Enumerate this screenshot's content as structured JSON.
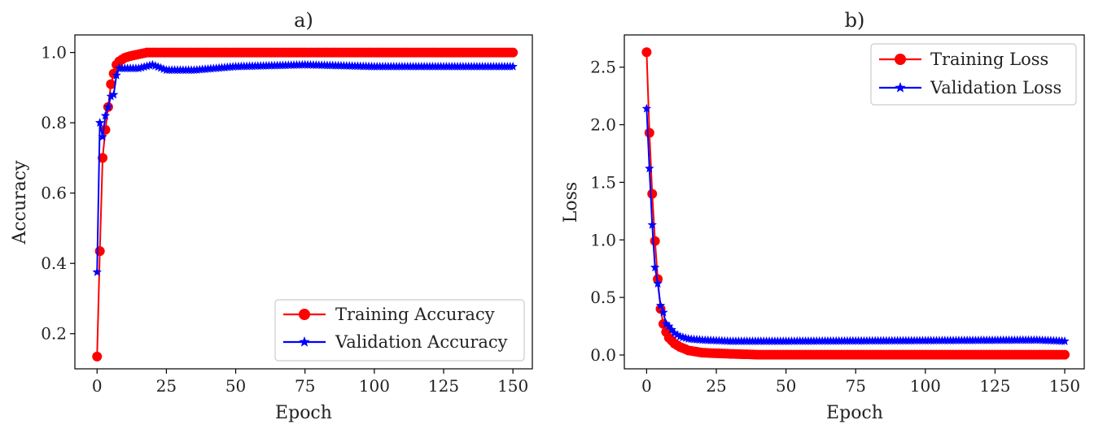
{
  "chart_data": [
    {
      "type": "line",
      "title": "a)",
      "xlabel": "Epoch",
      "ylabel": "Accuracy",
      "xlim": [
        -8,
        157
      ],
      "ylim": [
        0.1,
        1.05
      ],
      "xticks": [
        0,
        25,
        50,
        75,
        100,
        125,
        150
      ],
      "yticks": [
        0.2,
        0.4,
        0.6,
        0.8,
        1.0
      ],
      "legend_position": "lower-right",
      "grid": false,
      "series": [
        {
          "name": "Training Accuracy",
          "color": "#ff0000",
          "marker": "circle",
          "anchors": [
            [
              0,
              0.135
            ],
            [
              1,
              0.435
            ],
            [
              2,
              0.7
            ],
            [
              3,
              0.78
            ],
            [
              4,
              0.845
            ],
            [
              5,
              0.91
            ],
            [
              6,
              0.94
            ],
            [
              7,
              0.965
            ],
            [
              8,
              0.975
            ],
            [
              10,
              0.985
            ],
            [
              12,
              0.99
            ],
            [
              15,
              0.995
            ],
            [
              18,
              1.0
            ],
            [
              150,
              1.0
            ]
          ]
        },
        {
          "name": "Validation Accuracy",
          "color": "#0000ff",
          "marker": "star",
          "anchors": [
            [
              0,
              0.375
            ],
            [
              1,
              0.8
            ],
            [
              2,
              0.76
            ],
            [
              3,
              0.82
            ],
            [
              4,
              0.845
            ],
            [
              5,
              0.875
            ],
            [
              6,
              0.88
            ],
            [
              7,
              0.935
            ],
            [
              8,
              0.955
            ],
            [
              10,
              0.955
            ],
            [
              15,
              0.955
            ],
            [
              20,
              0.965
            ],
            [
              25,
              0.95
            ],
            [
              35,
              0.95
            ],
            [
              50,
              0.96
            ],
            [
              75,
              0.965
            ],
            [
              100,
              0.96
            ],
            [
              150,
              0.96
            ]
          ]
        }
      ]
    },
    {
      "type": "line",
      "title": "b)",
      "xlabel": "Epoch",
      "ylabel": "Loss",
      "xlim": [
        -8,
        157
      ],
      "ylim": [
        -0.12,
        2.78
      ],
      "xticks": [
        0,
        25,
        50,
        75,
        100,
        125,
        150
      ],
      "yticks": [
        0.0,
        0.5,
        1.0,
        1.5,
        2.0,
        2.5
      ],
      "legend_position": "upper-right",
      "grid": false,
      "series": [
        {
          "name": "Training Loss",
          "color": "#ff0000",
          "marker": "circle",
          "anchors": [
            [
              0,
              2.63
            ],
            [
              1,
              1.93
            ],
            [
              2,
              1.4
            ],
            [
              3,
              0.99
            ],
            [
              4,
              0.66
            ],
            [
              5,
              0.4
            ],
            [
              6,
              0.27
            ],
            [
              7,
              0.2
            ],
            [
              8,
              0.15
            ],
            [
              10,
              0.1
            ],
            [
              12,
              0.07
            ],
            [
              15,
              0.04
            ],
            [
              20,
              0.02
            ],
            [
              30,
              0.01
            ],
            [
              40,
              0.003
            ],
            [
              150,
              0.003
            ]
          ]
        },
        {
          "name": "Validation Loss",
          "color": "#0000ff",
          "marker": "star",
          "anchors": [
            [
              0,
              2.14
            ],
            [
              1,
              1.62
            ],
            [
              2,
              1.13
            ],
            [
              3,
              0.76
            ],
            [
              4,
              0.62
            ],
            [
              5,
              0.43
            ],
            [
              6,
              0.37
            ],
            [
              7,
              0.27
            ],
            [
              8,
              0.25
            ],
            [
              10,
              0.19
            ],
            [
              12,
              0.16
            ],
            [
              15,
              0.14
            ],
            [
              20,
              0.13
            ],
            [
              30,
              0.12
            ],
            [
              50,
              0.12
            ],
            [
              100,
              0.125
            ],
            [
              140,
              0.13
            ],
            [
              150,
              0.12
            ]
          ]
        }
      ]
    }
  ]
}
